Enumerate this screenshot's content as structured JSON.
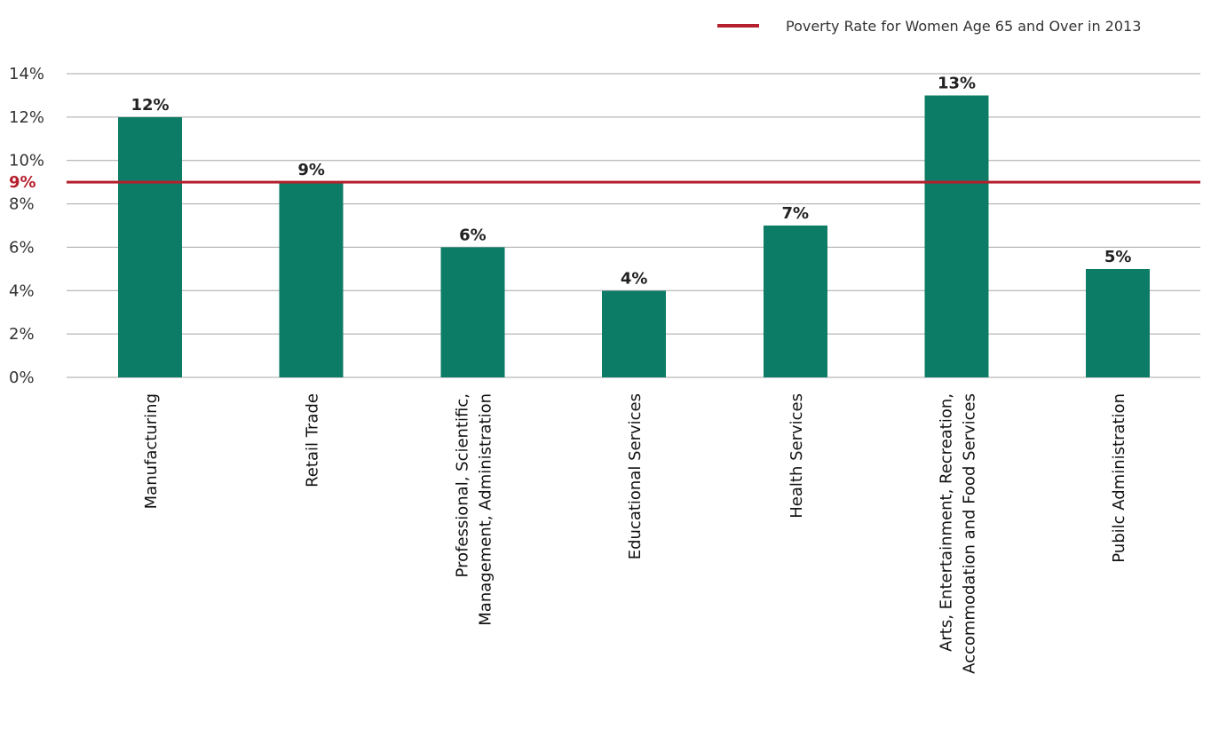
{
  "chart_data": {
    "type": "bar",
    "categories": [
      [
        "Manufacturing"
      ],
      [
        "Retail Trade"
      ],
      [
        "Professional, Scientific,",
        "Management, Administration"
      ],
      [
        "Educational Services"
      ],
      [
        "Health Services"
      ],
      [
        "Arts, Entertainment, Recreation,",
        "Accommodation and Food Services"
      ],
      [
        "Pubilc Administration"
      ]
    ],
    "values": [
      12,
      9,
      6,
      4,
      7,
      13,
      5
    ],
    "data_labels": [
      "12%",
      "9%",
      "6%",
      "4%",
      "7%",
      "13%",
      "5%"
    ],
    "ylim": [
      0,
      14
    ],
    "yticks": [
      0,
      2,
      4,
      6,
      8,
      10,
      12,
      14
    ],
    "ytick_labels": [
      "0%",
      "2%",
      "4%",
      "6%",
      "8%",
      "10%",
      "12%",
      "14%"
    ],
    "grid": true,
    "bar_color": "#0d7c66",
    "reference_line": {
      "value": 9,
      "label": "9%",
      "color": "#b5202e",
      "legend_text": "Poverty Rate for Women Age 65 and Over in 2013"
    },
    "legend_position": "top-right"
  }
}
